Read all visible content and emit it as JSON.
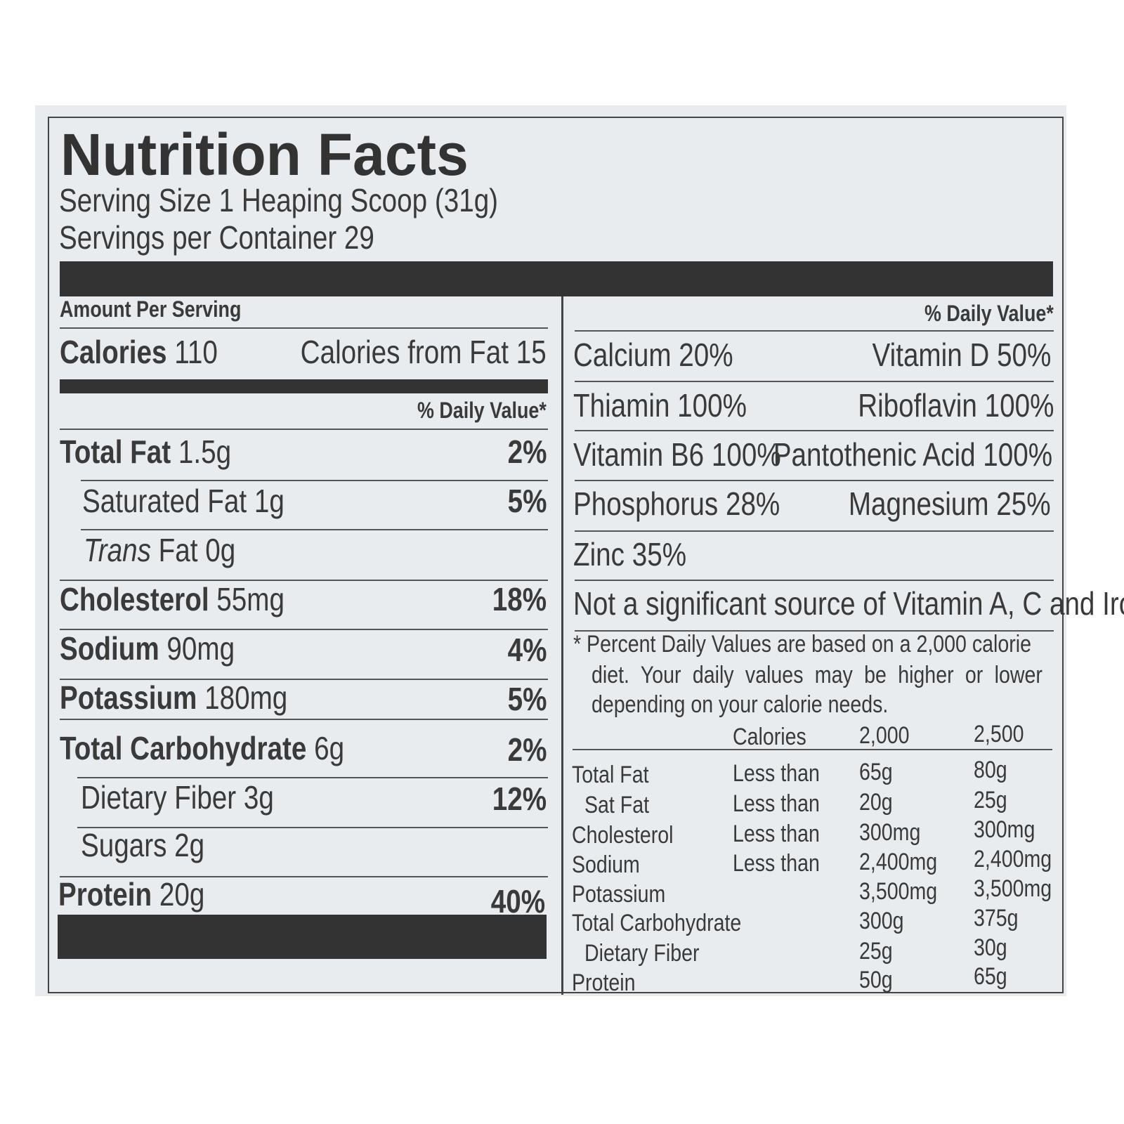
{
  "title": "Nutrition Facts",
  "serving_size": "Serving Size 1 Heaping Scoop (31g)",
  "servings_per_container": "Servings per Container 29",
  "left": {
    "amount_per_serving": "Amount Per Serving",
    "calories_label": "Calories",
    "calories_value": "110",
    "calories_from_fat": "Calories from Fat 15",
    "dv_header": "% Daily Value*",
    "rows": [
      {
        "label": "Total Fat",
        "amount": "1.5g",
        "dv": "2%"
      },
      {
        "label": "Saturated Fat 1g",
        "amount": "",
        "dv": "5%"
      },
      {
        "label": "Trans",
        "amount": "Fat 0g",
        "dv": ""
      },
      {
        "label": "Cholesterol",
        "amount": "55mg",
        "dv": "18%"
      },
      {
        "label": "Sodium",
        "amount": "90mg",
        "dv": "4%"
      },
      {
        "label": "Potassium",
        "amount": "180mg",
        "dv": "5%"
      },
      {
        "label": "Total Carbohydrate",
        "amount": "6g",
        "dv": "2%"
      },
      {
        "label": "Dietary Fiber 3g",
        "amount": "",
        "dv": "12%"
      },
      {
        "label": "Sugars 2g",
        "amount": "",
        "dv": ""
      },
      {
        "label": "Protein",
        "amount": "20g",
        "dv": "40%"
      }
    ]
  },
  "right": {
    "dv_header": "% Daily Value*",
    "vitamins": [
      {
        "left": "Calcium 20%",
        "right": "Vitamin D 50%"
      },
      {
        "left": "Thiamin 100%",
        "right": "Riboflavin 100%"
      },
      {
        "left": "Vitamin B6 100%",
        "right": "Pantothenic Acid 100%"
      },
      {
        "left": "Phosphorus 28%",
        "right": "Magnesium 25%"
      },
      {
        "left": "Zinc 35%",
        "right": ""
      }
    ],
    "not_significant": "Not a significant source of Vitamin A, C and Iron.",
    "footnote": [
      "* Percent Daily Values are based on a 2,000 calorie",
      "diet. Your daily values may be higher or lower",
      "depending on your calorie needs."
    ],
    "table_header": [
      "Calories",
      "2,000",
      "2,500"
    ],
    "table_rows": [
      [
        "Total Fat",
        "Less than",
        "65g",
        "80g"
      ],
      [
        "Sat Fat",
        "Less than",
        "20g",
        "25g"
      ],
      [
        "Cholesterol",
        "Less than",
        "300mg",
        "300mg"
      ],
      [
        "Sodium",
        "Less than",
        "2,400mg",
        "2,400mg"
      ],
      [
        "Potassium",
        "",
        "3,500mg",
        "3,500mg"
      ],
      [
        "Total Carbohydrate",
        "",
        "300g",
        "375g"
      ],
      [
        "Dietary Fiber",
        "",
        "25g",
        "30g"
      ],
      [
        "Protein",
        "",
        "50g",
        "65g"
      ]
    ]
  }
}
